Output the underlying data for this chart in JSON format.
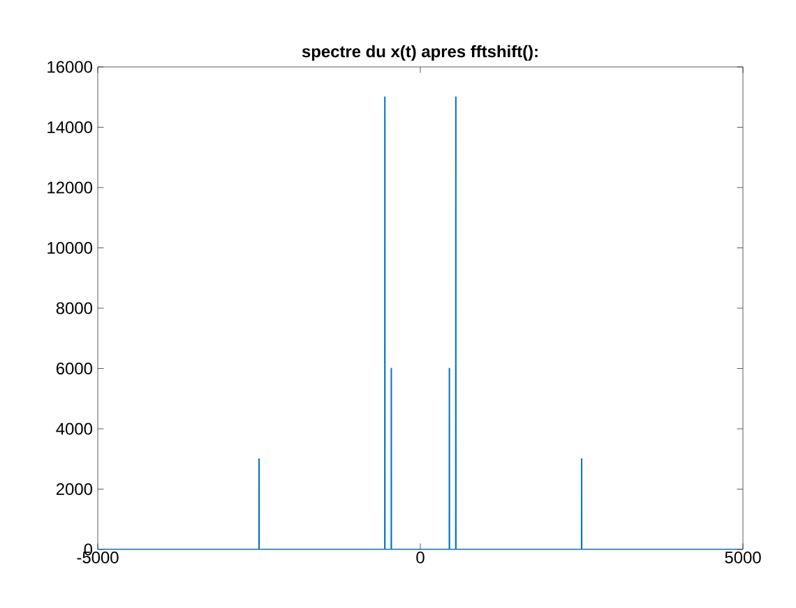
{
  "chart_data": {
    "type": "line",
    "title": "spectre du  x(t) apres fftshift():",
    "series": [
      {
        "color": "#0072bd",
        "x": [
          -5000,
          -2501,
          -2500,
          -2499,
          -551,
          -550,
          -549,
          -451,
          -450,
          -449,
          449,
          450,
          451,
          549,
          550,
          551,
          2499,
          2500,
          2501,
          5000
        ],
        "values": [
          0,
          0,
          3000,
          0,
          0,
          15000,
          0,
          0,
          6000,
          0,
          0,
          6000,
          0,
          0,
          15000,
          0,
          0,
          3000,
          0,
          0
        ]
      }
    ],
    "xlim": [
      -5000,
      5000
    ],
    "xticks": [
      -5000,
      0,
      5000
    ],
    "ylim": [
      0,
      16000
    ],
    "yticks": [
      0,
      2000,
      4000,
      6000,
      8000,
      10000,
      12000,
      14000,
      16000
    ],
    "marker": "none",
    "line_style": "solid"
  }
}
